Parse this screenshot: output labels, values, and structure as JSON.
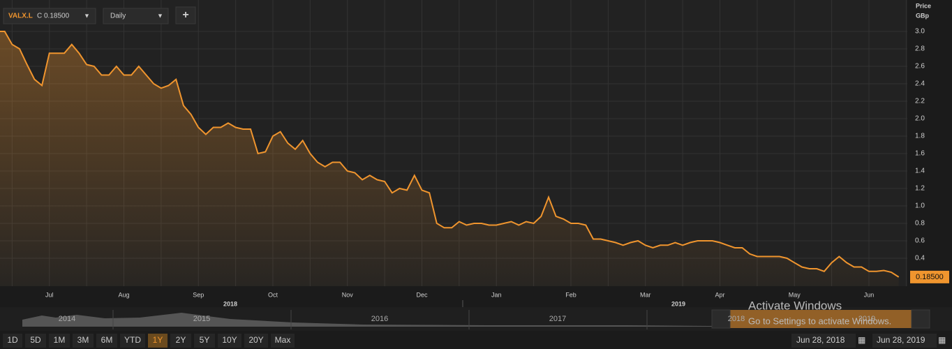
{
  "toolbar": {
    "symbol": "VALX.L",
    "quote": "C 0.18500",
    "interval": "Daily",
    "add": "+"
  },
  "chart_data": {
    "type": "line",
    "axis_title": [
      "Price",
      "GBp"
    ],
    "categories": [
      null,
      null,
      null,
      null,
      null,
      null,
      null,
      "Jul",
      null,
      null,
      null,
      null,
      null,
      null,
      null,
      null,
      null,
      "Aug",
      null,
      null,
      null,
      null,
      null,
      null,
      null,
      null,
      null,
      "Sep",
      null,
      null,
      null,
      null,
      null,
      null,
      null,
      null,
      null,
      "Oct",
      null,
      null,
      null,
      null,
      null,
      null,
      null,
      null,
      null,
      "Nov",
      null,
      null,
      null,
      null,
      null,
      null,
      null,
      null,
      null,
      "Dec",
      null,
      null,
      null,
      null,
      null,
      null,
      null,
      null,
      null,
      "Jan",
      null,
      null,
      null,
      null,
      null,
      null,
      null,
      null,
      null,
      "Feb",
      null,
      null,
      null,
      null,
      null,
      null,
      null,
      null,
      null,
      "Mar",
      null,
      null,
      null,
      null,
      null,
      null,
      null,
      null,
      null,
      "Apr",
      null,
      null,
      null,
      null,
      null,
      null,
      null,
      null,
      null,
      "May",
      null,
      null,
      null,
      null,
      null,
      null,
      null,
      null,
      null,
      "Jun",
      null,
      null,
      null,
      null
    ],
    "year_labels": [
      "2018",
      "2019"
    ],
    "values": [
      3.0,
      3.0,
      2.85,
      2.8,
      2.62,
      2.45,
      2.38,
      2.75,
      2.75,
      2.75,
      2.85,
      2.75,
      2.62,
      2.6,
      2.5,
      2.5,
      2.6,
      2.5,
      2.5,
      2.6,
      2.5,
      2.4,
      2.35,
      2.38,
      2.45,
      2.15,
      2.05,
      1.9,
      1.82,
      1.9,
      1.9,
      1.95,
      1.9,
      1.88,
      1.88,
      1.6,
      1.62,
      1.8,
      1.85,
      1.72,
      1.65,
      1.75,
      1.6,
      1.5,
      1.45,
      1.5,
      1.5,
      1.4,
      1.38,
      1.3,
      1.35,
      1.3,
      1.28,
      1.15,
      1.2,
      1.18,
      1.35,
      1.18,
      1.15,
      0.8,
      0.75,
      0.75,
      0.82,
      0.78,
      0.8,
      0.8,
      0.78,
      0.78,
      0.8,
      0.82,
      0.78,
      0.82,
      0.8,
      0.88,
      1.1,
      0.88,
      0.85,
      0.8,
      0.8,
      0.78,
      0.62,
      0.62,
      0.6,
      0.58,
      0.55,
      0.58,
      0.6,
      0.55,
      0.52,
      0.55,
      0.55,
      0.58,
      0.55,
      0.58,
      0.6,
      0.6,
      0.6,
      0.58,
      0.55,
      0.52,
      0.52,
      0.45,
      0.42,
      0.42,
      0.42,
      0.42,
      0.4,
      0.35,
      0.3,
      0.28,
      0.28,
      0.25,
      0.35,
      0.42,
      0.35,
      0.3,
      0.3,
      0.25,
      0.25,
      0.26,
      0.24,
      0.185
    ],
    "value_labels": [
      null,
      null,
      null,
      null,
      null,
      null,
      null,
      null,
      null,
      null,
      null,
      null,
      null,
      null,
      null,
      null,
      null,
      null,
      null,
      null,
      null,
      null,
      null,
      null,
      null,
      null,
      null,
      null,
      null,
      null,
      null,
      null,
      null,
      null,
      null,
      null,
      null,
      null,
      null,
      null,
      null,
      null,
      null,
      null,
      null,
      null,
      null,
      null,
      null,
      null,
      null,
      null,
      null,
      null,
      null,
      null,
      null,
      null,
      null,
      null,
      null,
      null,
      null,
      null,
      null,
      null,
      null,
      null,
      null,
      null,
      null,
      null,
      null,
      null,
      null,
      null,
      null,
      null,
      null,
      null,
      null,
      null,
      null,
      null,
      null,
      null,
      null,
      null,
      null,
      null,
      null,
      null,
      null,
      null,
      null,
      null,
      null,
      null,
      null,
      null,
      null,
      null,
      null,
      null,
      null,
      null,
      null,
      null,
      null,
      null,
      null,
      null,
      null,
      null,
      null,
      null,
      null,
      null,
      null,
      null,
      null,
      "0.18500"
    ],
    "color": "#f0952e",
    "ylim": [
      0.08,
      3.36
    ],
    "yticks": [
      0.4,
      0.6,
      0.8,
      {
        "value": 1.0,
        "label": "1.0"
      },
      1.2,
      1.4,
      1.6,
      1.8,
      {
        "value": 2.0,
        "label": "2.0"
      },
      2.2,
      2.4,
      2.6,
      2.8,
      {
        "value": 3.0,
        "label": "3.0"
      }
    ],
    "grid": true
  },
  "navigator": {
    "years": [
      "2014",
      "2015",
      "2016",
      "2017",
      "2018",
      "2019"
    ]
  },
  "range_buttons": [
    "1D",
    "5D",
    "1M",
    "3M",
    "6M",
    "YTD",
    "1Y",
    "2Y",
    "5Y",
    "10Y",
    "20Y",
    "Max"
  ],
  "date_range": [
    "Jun 28, 2018",
    "Jun 28, 2019"
  ],
  "watermark": {
    "title": "Activate Windows",
    "subtitle": "Go to Settings to activate Windows."
  }
}
